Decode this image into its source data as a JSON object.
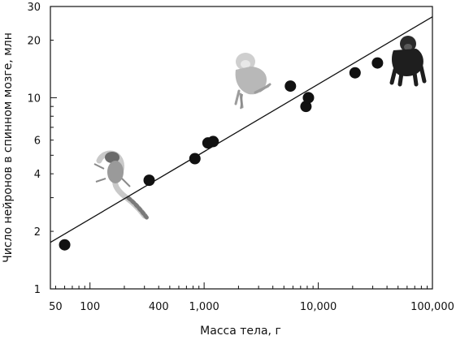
{
  "chart_data": {
    "type": "scatter",
    "xlabel": "Масса тела, г",
    "ylabel": "Число нейронов в спинном мозге, млн",
    "x_scale": "log",
    "y_scale": "log",
    "xlim": [
      45,
      100000
    ],
    "ylim": [
      1,
      30
    ],
    "x_tick_labels": [
      {
        "value": 50,
        "label": "50"
      },
      {
        "value": 100,
        "label": "100"
      },
      {
        "value": 400,
        "label": "400"
      },
      {
        "value": 1000,
        "label": "1,000"
      },
      {
        "value": 10000,
        "label": "10,000"
      },
      {
        "value": 100000,
        "label": "100,000"
      }
    ],
    "y_tick_labels": [
      {
        "value": 1,
        "label": "1"
      },
      {
        "value": 2,
        "label": "2"
      },
      {
        "value": 4,
        "label": "4"
      },
      {
        "value": 6,
        "label": "6"
      },
      {
        "value": 10,
        "label": "10"
      },
      {
        "value": 20,
        "label": "20"
      },
      {
        "value": 30,
        "label": "30"
      }
    ],
    "points": [
      {
        "x": 60,
        "y": 1.7
      },
      {
        "x": 330,
        "y": 3.7
      },
      {
        "x": 830,
        "y": 4.8
      },
      {
        "x": 1080,
        "y": 5.8
      },
      {
        "x": 1200,
        "y": 5.9
      },
      {
        "x": 5700,
        "y": 11.5
      },
      {
        "x": 7800,
        "y": 9.0
      },
      {
        "x": 8200,
        "y": 10.0
      },
      {
        "x": 21000,
        "y": 13.5
      },
      {
        "x": 33000,
        "y": 15.2
      }
    ],
    "trendline": {
      "x": [
        45,
        100000
      ],
      "y": [
        1.75,
        26.5
      ]
    },
    "grid": false,
    "legend": "none",
    "colors": {
      "points": "#111111",
      "line": "#111111",
      "axis": "#111111"
    },
    "illustrations": [
      "marmoset-illustration",
      "macaque-illustration",
      "chimpanzee-illustration"
    ]
  }
}
